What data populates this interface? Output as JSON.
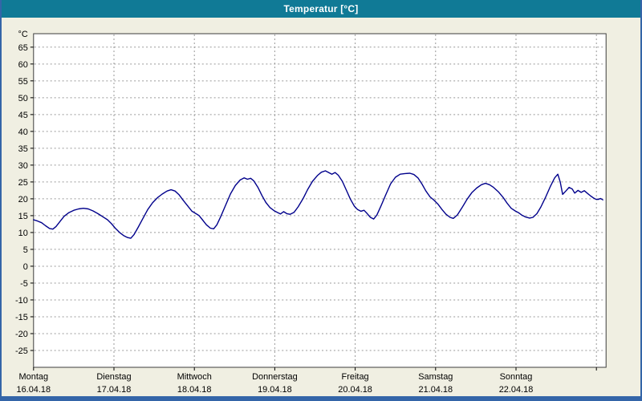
{
  "window": {
    "title": "Temperatur [°C]"
  },
  "colors": {
    "titlebar_bg": "#107a96",
    "titlebar_text": "#ffffff",
    "frame": "#3465a8",
    "chart_bg": "#f0efe2",
    "plot_bg": "#ffffff",
    "plot_border": "#3c3c3c",
    "grid": "#999999",
    "axis_text": "#000000",
    "line": "#00008b"
  },
  "chart_data": {
    "type": "line",
    "title": "Temperatur [°C]",
    "ylabel_unit": "°C",
    "ylim": [
      -30,
      69
    ],
    "yticks": [
      65,
      60,
      55,
      50,
      45,
      40,
      35,
      30,
      25,
      20,
      15,
      10,
      5,
      0,
      -5,
      -10,
      -15,
      -20,
      -25
    ],
    "ytick_step": 5,
    "x_days_total": 7.12,
    "grid": true,
    "legend_position": "none",
    "x_axis_days": [
      {
        "name": "Montag",
        "date": "16.04.18"
      },
      {
        "name": "Dienstag",
        "date": "17.04.18"
      },
      {
        "name": "Mittwoch",
        "date": "18.04.18"
      },
      {
        "name": "Donnerstag",
        "date": "19.04.18"
      },
      {
        "name": "Freitag",
        "date": "20.04.18"
      },
      {
        "name": "Samstag",
        "date": "21.04.18"
      },
      {
        "name": "Sonntag",
        "date": "22.04.18"
      }
    ],
    "series": [
      {
        "name": "Temperatur",
        "unit": "°C",
        "points": [
          [
            0.0,
            13.8
          ],
          [
            0.05,
            13.4
          ],
          [
            0.1,
            12.9
          ],
          [
            0.15,
            12.0
          ],
          [
            0.2,
            11.2
          ],
          [
            0.24,
            11.0
          ],
          [
            0.28,
            11.8
          ],
          [
            0.33,
            13.3
          ],
          [
            0.38,
            14.8
          ],
          [
            0.44,
            15.9
          ],
          [
            0.5,
            16.6
          ],
          [
            0.56,
            17.0
          ],
          [
            0.62,
            17.2
          ],
          [
            0.68,
            17.0
          ],
          [
            0.74,
            16.4
          ],
          [
            0.8,
            15.6
          ],
          [
            0.86,
            14.7
          ],
          [
            0.92,
            13.8
          ],
          [
            0.97,
            12.6
          ],
          [
            1.02,
            11.2
          ],
          [
            1.07,
            10.0
          ],
          [
            1.12,
            9.1
          ],
          [
            1.17,
            8.5
          ],
          [
            1.21,
            8.3
          ],
          [
            1.25,
            9.4
          ],
          [
            1.3,
            11.5
          ],
          [
            1.36,
            14.2
          ],
          [
            1.42,
            16.8
          ],
          [
            1.48,
            18.8
          ],
          [
            1.54,
            20.3
          ],
          [
            1.6,
            21.4
          ],
          [
            1.66,
            22.3
          ],
          [
            1.71,
            22.7
          ],
          [
            1.76,
            22.3
          ],
          [
            1.81,
            21.2
          ],
          [
            1.86,
            19.6
          ],
          [
            1.92,
            17.8
          ],
          [
            1.97,
            16.3
          ],
          [
            2.02,
            15.6
          ],
          [
            2.06,
            15.0
          ],
          [
            2.1,
            13.8
          ],
          [
            2.15,
            12.3
          ],
          [
            2.2,
            11.3
          ],
          [
            2.24,
            11.1
          ],
          [
            2.28,
            12.3
          ],
          [
            2.33,
            14.8
          ],
          [
            2.39,
            18.2
          ],
          [
            2.45,
            21.5
          ],
          [
            2.51,
            24.0
          ],
          [
            2.57,
            25.6
          ],
          [
            2.62,
            26.2
          ],
          [
            2.66,
            25.8
          ],
          [
            2.7,
            26.1
          ],
          [
            2.74,
            25.3
          ],
          [
            2.79,
            23.4
          ],
          [
            2.84,
            21.0
          ],
          [
            2.89,
            18.9
          ],
          [
            2.94,
            17.4
          ],
          [
            2.99,
            16.5
          ],
          [
            3.03,
            16.0
          ],
          [
            3.07,
            15.5
          ],
          [
            3.11,
            16.2
          ],
          [
            3.15,
            15.6
          ],
          [
            3.19,
            15.4
          ],
          [
            3.24,
            16.0
          ],
          [
            3.29,
            17.6
          ],
          [
            3.35,
            20.0
          ],
          [
            3.41,
            22.8
          ],
          [
            3.47,
            25.2
          ],
          [
            3.53,
            26.9
          ],
          [
            3.58,
            27.9
          ],
          [
            3.63,
            28.3
          ],
          [
            3.67,
            27.8
          ],
          [
            3.71,
            27.3
          ],
          [
            3.75,
            27.8
          ],
          [
            3.79,
            27.0
          ],
          [
            3.84,
            25.2
          ],
          [
            3.89,
            22.6
          ],
          [
            3.94,
            19.9
          ],
          [
            3.99,
            17.8
          ],
          [
            4.03,
            16.8
          ],
          [
            4.07,
            16.3
          ],
          [
            4.11,
            16.6
          ],
          [
            4.15,
            15.6
          ],
          [
            4.19,
            14.5
          ],
          [
            4.23,
            14.0
          ],
          [
            4.27,
            15.2
          ],
          [
            4.32,
            17.8
          ],
          [
            4.38,
            21.2
          ],
          [
            4.44,
            24.4
          ],
          [
            4.5,
            26.4
          ],
          [
            4.56,
            27.3
          ],
          [
            4.62,
            27.5
          ],
          [
            4.68,
            27.6
          ],
          [
            4.73,
            27.2
          ],
          [
            4.78,
            26.2
          ],
          [
            4.83,
            24.4
          ],
          [
            4.88,
            22.3
          ],
          [
            4.93,
            20.6
          ],
          [
            4.98,
            19.6
          ],
          [
            5.03,
            18.4
          ],
          [
            5.08,
            16.8
          ],
          [
            5.13,
            15.4
          ],
          [
            5.18,
            14.5
          ],
          [
            5.22,
            14.2
          ],
          [
            5.27,
            15.2
          ],
          [
            5.33,
            17.4
          ],
          [
            5.39,
            19.8
          ],
          [
            5.45,
            21.8
          ],
          [
            5.51,
            23.2
          ],
          [
            5.57,
            24.2
          ],
          [
            5.62,
            24.6
          ],
          [
            5.67,
            24.2
          ],
          [
            5.72,
            23.4
          ],
          [
            5.78,
            22.1
          ],
          [
            5.84,
            20.4
          ],
          [
            5.89,
            18.7
          ],
          [
            5.94,
            17.2
          ],
          [
            5.99,
            16.4
          ],
          [
            6.03,
            15.9
          ],
          [
            6.07,
            15.2
          ],
          [
            6.12,
            14.6
          ],
          [
            6.17,
            14.3
          ],
          [
            6.21,
            14.5
          ],
          [
            6.26,
            15.6
          ],
          [
            6.31,
            17.6
          ],
          [
            6.37,
            20.6
          ],
          [
            6.43,
            23.8
          ],
          [
            6.48,
            26.2
          ],
          [
            6.52,
            27.3
          ],
          [
            6.55,
            25.0
          ],
          [
            6.58,
            21.3
          ],
          [
            6.62,
            22.3
          ],
          [
            6.66,
            23.4
          ],
          [
            6.7,
            22.9
          ],
          [
            6.73,
            21.7
          ],
          [
            6.77,
            22.5
          ],
          [
            6.81,
            21.9
          ],
          [
            6.85,
            22.4
          ],
          [
            6.89,
            21.6
          ],
          [
            6.93,
            20.8
          ],
          [
            6.96,
            20.3
          ],
          [
            6.99,
            19.9
          ],
          [
            7.02,
            19.8
          ],
          [
            7.05,
            20.1
          ],
          [
            7.08,
            19.7
          ]
        ]
      }
    ]
  }
}
